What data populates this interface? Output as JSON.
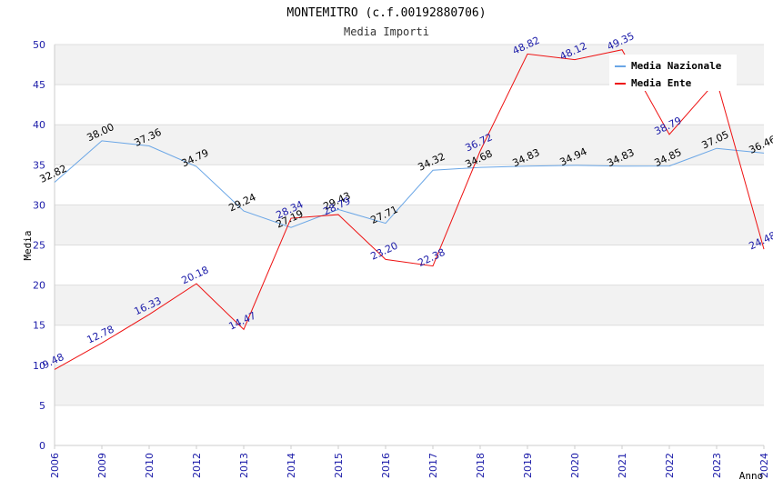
{
  "chart_data": {
    "type": "line",
    "title": "MONTEMITRO (c.f.00192880706)",
    "subtitle": "Media Importi",
    "xlabel": "Anno",
    "ylabel": "Media",
    "ylim": [
      0,
      50
    ],
    "yticks": [
      0,
      5,
      10,
      15,
      20,
      25,
      30,
      35,
      40,
      45,
      50
    ],
    "grid": true,
    "legend_position": "top-right",
    "categories": [
      "2006",
      "2009",
      "2010",
      "2012",
      "2013",
      "2014",
      "2015",
      "2016",
      "2017",
      "2018",
      "2019",
      "2020",
      "2021",
      "2022",
      "2023",
      "2024"
    ],
    "series": [
      {
        "name": "Media Nazionale",
        "color": "#6aa6e6",
        "label_color": "#000000",
        "values": [
          32.82,
          38.0,
          37.36,
          34.79,
          29.24,
          27.19,
          29.43,
          27.71,
          34.32,
          34.68,
          34.83,
          34.94,
          34.83,
          34.85,
          37.05,
          36.46
        ],
        "labels": [
          "32.82",
          "38.00",
          "37.36",
          "34.79",
          "29.24",
          "27.19",
          "29.43",
          "27.71",
          "34.32",
          "34.68",
          "34.83",
          "34.94",
          "34.83",
          "34.85",
          "37.05",
          "36.46"
        ]
      },
      {
        "name": "Media Ente",
        "color": "#ee1111",
        "label_color": "#1a1aa8",
        "values": [
          9.48,
          12.78,
          16.33,
          20.18,
          14.47,
          28.34,
          28.79,
          23.2,
          22.38,
          36.72,
          48.82,
          48.12,
          49.35,
          38.79,
          45.5,
          24.48
        ],
        "labels": [
          "9.48",
          "12.78",
          "16.33",
          "20.18",
          "14.47",
          "28.34",
          "28.79",
          "23.20",
          "22.38",
          "36.72",
          "48.82",
          "48.12",
          "49.35",
          "38.79",
          null,
          "24.48"
        ]
      }
    ]
  }
}
